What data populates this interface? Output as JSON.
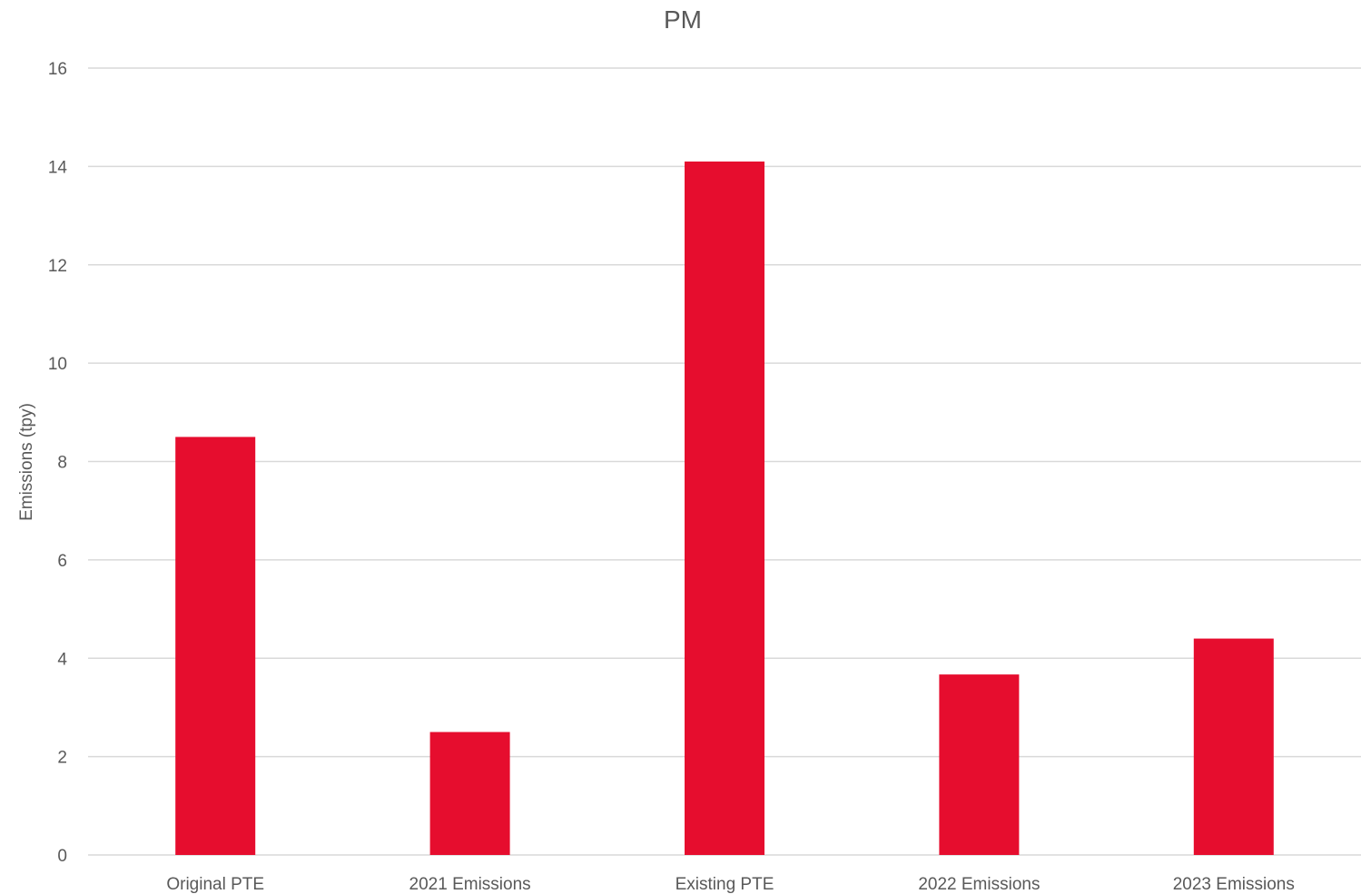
{
  "chart_data": {
    "type": "bar",
    "title": "PM",
    "xlabel": "",
    "ylabel": "Emissions (tpy)",
    "categories": [
      "Original PTE",
      "2021 Emissions",
      "Existing PTE",
      "2022 Emissions",
      "2023 Emissions"
    ],
    "series": [
      {
        "values": [
          8.5,
          2.5,
          14.1,
          3.67,
          4.4
        ]
      }
    ],
    "ylim": [
      0,
      16
    ],
    "yticks": [
      0,
      2,
      4,
      6,
      8,
      10,
      12,
      14,
      16
    ],
    "grid": true,
    "legend": "none",
    "bar_color": "#E60D2E",
    "text_color": "#595959",
    "grid_color": "#D9D9D9"
  }
}
